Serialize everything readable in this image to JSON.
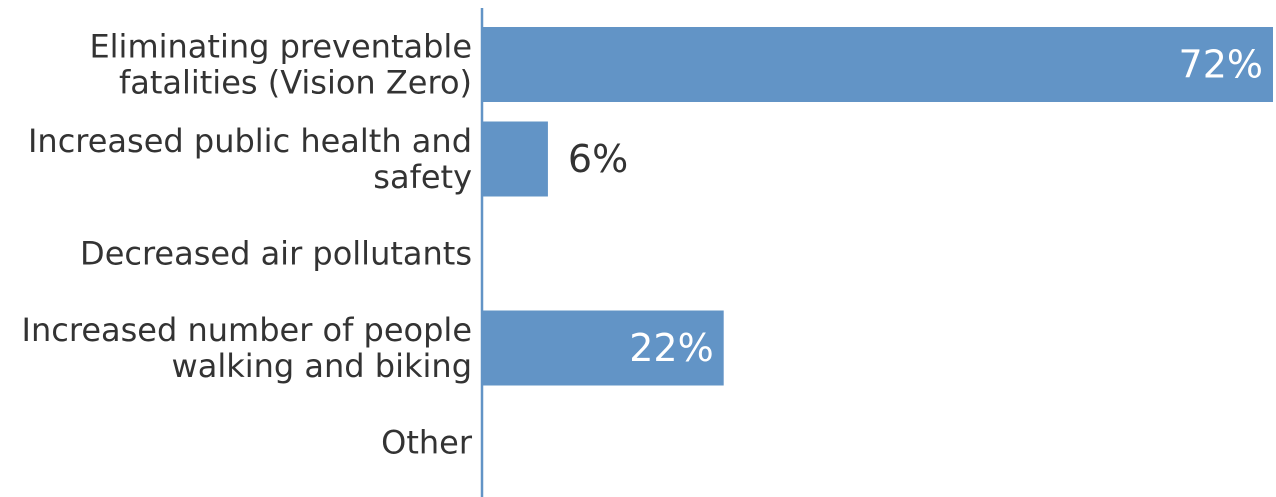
{
  "colors": {
    "bar": "#6294C6",
    "axis": "#6294C6",
    "label_text": "#333333",
    "value_inside": "#ffffff",
    "value_outside": "#333333"
  },
  "chart_data": {
    "type": "bar",
    "orientation": "horizontal",
    "categories": [
      [
        "Eliminating preventable",
        "fatalities (Vision Zero)"
      ],
      [
        "Increased public health and",
        "safety"
      ],
      [
        "Decreased air pollutants"
      ],
      [
        "Increased number of people",
        "walking and biking"
      ],
      [
        "Other"
      ]
    ],
    "values": [
      72,
      6,
      0,
      22,
      0
    ],
    "value_labels": [
      "72%",
      "6%",
      "",
      "22%",
      ""
    ],
    "xlim": [
      0,
      72
    ],
    "grid": false,
    "legend": "none"
  }
}
